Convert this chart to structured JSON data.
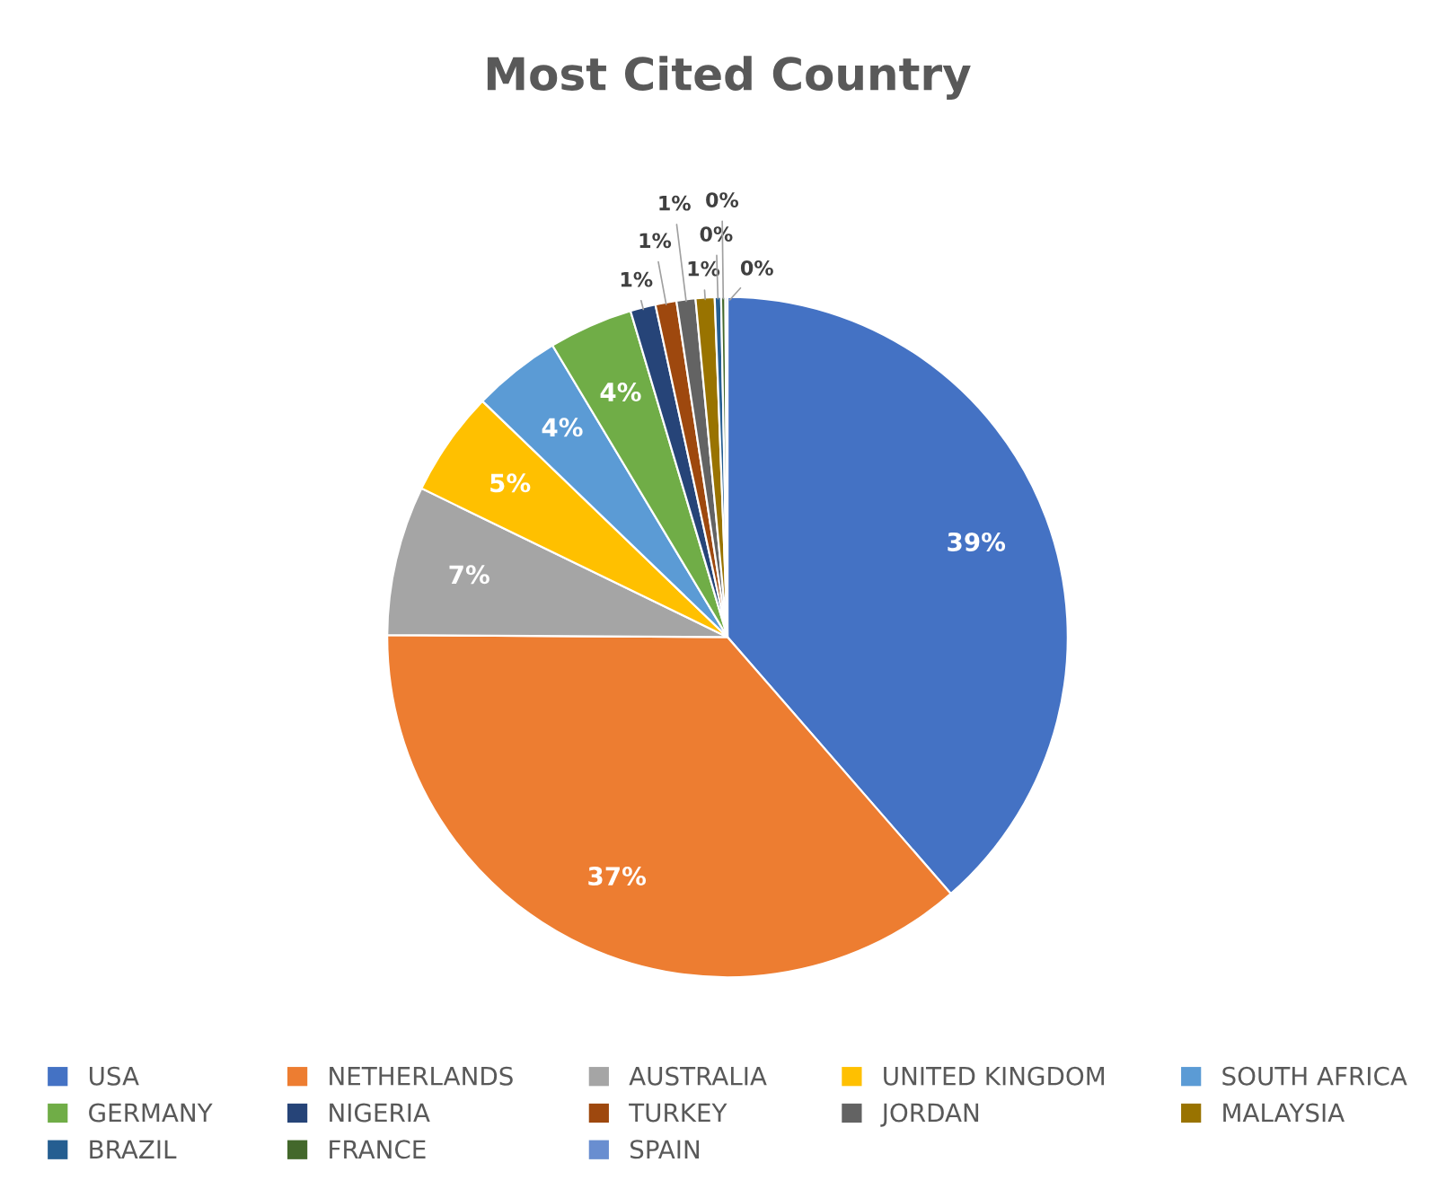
{
  "chart_data": {
    "type": "pie",
    "title": "Most Cited Country",
    "categories": [
      "USA",
      "NETHERLANDS",
      "AUSTRALIA",
      "UNITED KINGDOM",
      "SOUTH AFRICA",
      "GERMANY",
      "NIGERIA",
      "TURKEY",
      "JORDAN",
      "MALAYSIA",
      "BRAZIL",
      "FRANCE",
      "SPAIN"
    ],
    "values": [
      38.6,
      36.5,
      7.1,
      5.0,
      4.2,
      4.0,
      1.2,
      1.0,
      0.9,
      0.9,
      0.3,
      0.2,
      0.1
    ],
    "value_labels": [
      "39%",
      "37%",
      "7%",
      "5%",
      "4%",
      "4%",
      "1%",
      "1%",
      "1%",
      "1%",
      "0%",
      "0%",
      "0%"
    ],
    "colors": [
      "#4472c4",
      "#ed7d31",
      "#a5a5a5",
      "#ffc000",
      "#5b9bd5",
      "#70ad47",
      "#264478",
      "#9e480e",
      "#636363",
      "#997300",
      "#255e91",
      "#43682b",
      "#698ed0"
    ],
    "legend": "bottom"
  }
}
